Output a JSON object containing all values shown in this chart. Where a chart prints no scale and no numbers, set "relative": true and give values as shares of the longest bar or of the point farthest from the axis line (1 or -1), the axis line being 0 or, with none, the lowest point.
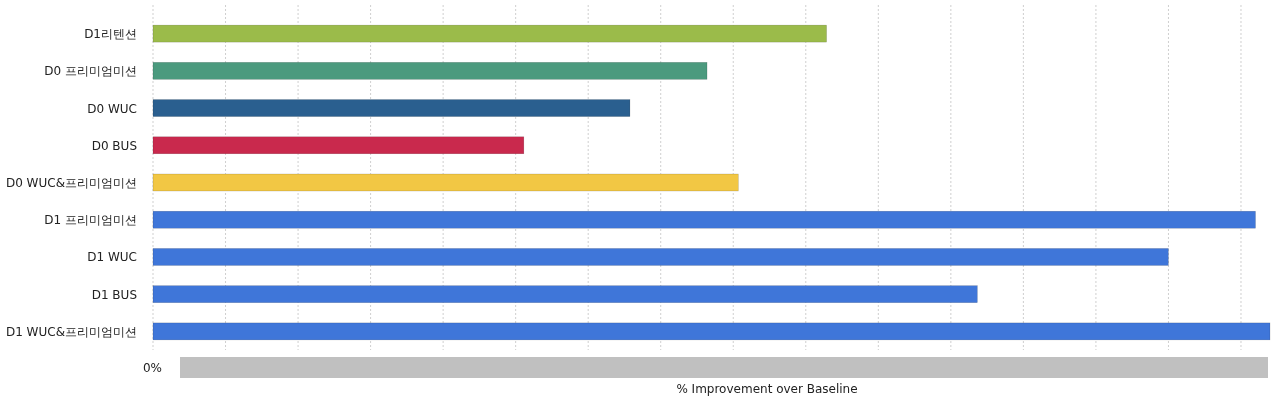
{
  "chart_data": {
    "type": "bar",
    "orientation": "horizontal",
    "relative": true,
    "grid": "x",
    "categories": [
      "D1리텐션",
      "D0 프리미엄미션",
      "D0 WUC",
      "D0 BUS",
      "D0 WUC&프리미엄미션",
      "D1 프리미엄미션",
      "D1 WUC",
      "D1 BUS",
      "D1 WUC&프리미엄미션"
    ],
    "values": [
      0.603,
      0.496,
      0.427,
      0.332,
      0.524,
      0.987,
      0.909,
      0.738,
      1
    ],
    "colors": [
      "#9bbb4a",
      "#4b9a7e",
      "#2a5f8f",
      "#c9294d",
      "#f2c744",
      "#3f76d9",
      "#3f76d9",
      "#3f76d9",
      "#3f76d9"
    ],
    "xlabel": "% Improvement over Baseline",
    "annotations": [
      "0%"
    ]
  }
}
